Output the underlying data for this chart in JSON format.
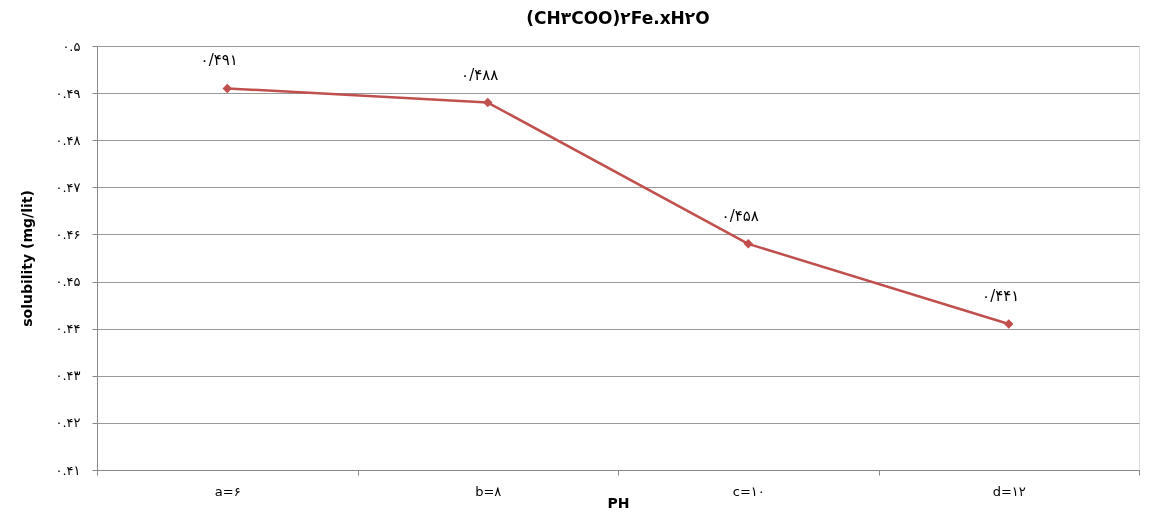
{
  "chart_data": {
    "type": "line",
    "title": "(CH۳COO)۲Fe.xH۲O",
    "xlabel": "PH",
    "ylabel": "solubility (mg/lit)",
    "categories": [
      "a=۶",
      "b=۸",
      "c=۱۰",
      "d=۱۲"
    ],
    "series": [
      {
        "color": "#c0504d",
        "values": [
          0.491,
          0.488,
          0.458,
          0.441
        ],
        "value_labels": [
          "۰/۴۹۱",
          "۰/۴۸۸",
          "۰/۴۵۸",
          "۰/۴۴۱"
        ]
      }
    ],
    "ylim": [
      0.41,
      0.5
    ],
    "yticks": [
      {
        "value": 0.41,
        "label": "۰.۴۱"
      },
      {
        "value": 0.42,
        "label": "۰.۴۲"
      },
      {
        "value": 0.43,
        "label": "۰.۴۳"
      },
      {
        "value": 0.44,
        "label": "۰.۴۴"
      },
      {
        "value": 0.45,
        "label": "۰.۴۵"
      },
      {
        "value": 0.46,
        "label": "۰.۴۶"
      },
      {
        "value": 0.47,
        "label": "۰.۴۷"
      },
      {
        "value": 0.48,
        "label": "۰.۴۸"
      },
      {
        "value": 0.49,
        "label": "۰.۴۹"
      },
      {
        "value": 0.5,
        "label": "۰.۵"
      }
    ],
    "grid": "y",
    "marker": "diamond",
    "line_style": "solid"
  }
}
